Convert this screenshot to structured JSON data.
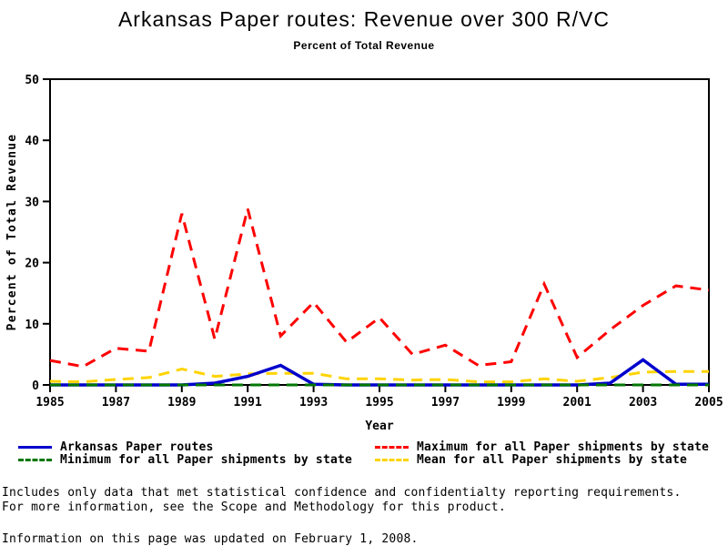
{
  "page": {
    "background": "#ffffff",
    "text_color": "#000000"
  },
  "chart_data": {
    "type": "line",
    "title": "Arkansas Paper routes: Revenue over 300 R/VC",
    "subtitle": "Percent of Total Revenue",
    "xlabel": "Year",
    "ylabel": "Percent of Total Revenue",
    "xlim": [
      1985,
      2005
    ],
    "ylim": [
      0,
      50
    ],
    "xticks": [
      1985,
      1987,
      1989,
      1991,
      1993,
      1995,
      1997,
      1999,
      2001,
      2003,
      2005
    ],
    "yticks": [
      0,
      10,
      20,
      30,
      40,
      50
    ],
    "grid": false,
    "legend_position": "bottom",
    "x": [
      1985,
      1986,
      1987,
      1988,
      1989,
      1990,
      1991,
      1992,
      1993,
      1994,
      1995,
      1996,
      1997,
      1998,
      1999,
      2000,
      2001,
      2002,
      2003,
      2004,
      2005
    ],
    "series": [
      {
        "name": "Arkansas Paper routes",
        "color": "#0000cc",
        "dash": "solid",
        "z": 3,
        "values": [
          0,
          0,
          0,
          0,
          0,
          0.3,
          1.4,
          3.2,
          0.1,
          0,
          0,
          0,
          0,
          0,
          0,
          0,
          0,
          0.3,
          4.1,
          0.1,
          0.1
        ]
      },
      {
        "name": "Minimum for all Paper shipments by state",
        "color": "#007700",
        "dash": "dashed",
        "z": 4,
        "values": [
          0,
          0,
          0,
          0,
          0,
          0,
          0,
          0,
          0,
          0,
          0,
          0,
          0,
          0,
          0,
          0,
          0,
          0,
          0,
          0,
          0
        ]
      },
      {
        "name": "Maximum for all Paper shipments by state",
        "color": "#ff0000",
        "dash": "dashed",
        "z": 1,
        "values": [
          4,
          3,
          6,
          5.5,
          28,
          7.5,
          28.8,
          8,
          13.5,
          7,
          11,
          5,
          6.5,
          3.2,
          3.8,
          16.5,
          4.5,
          9,
          13,
          16.2,
          15.5
        ]
      },
      {
        "name": "Mean for all Paper shipments by state",
        "color": "#ffd400",
        "dash": "dashed",
        "z": 2,
        "values": [
          0.6,
          0.5,
          0.9,
          1.2,
          2.6,
          1.4,
          1.8,
          1.9,
          1.9,
          1.0,
          1.0,
          0.8,
          0.9,
          0.5,
          0.5,
          1.0,
          0.6,
          1.2,
          2.1,
          2.2,
          2.2
        ]
      }
    ]
  },
  "footnotes": {
    "line1": "Includes only data that met statistical confidence and confidentialty reporting requirements.",
    "line2": "For more information, see the Scope and Methodology for this product.",
    "updated": "Information on this page was updated on February 1, 2008."
  }
}
